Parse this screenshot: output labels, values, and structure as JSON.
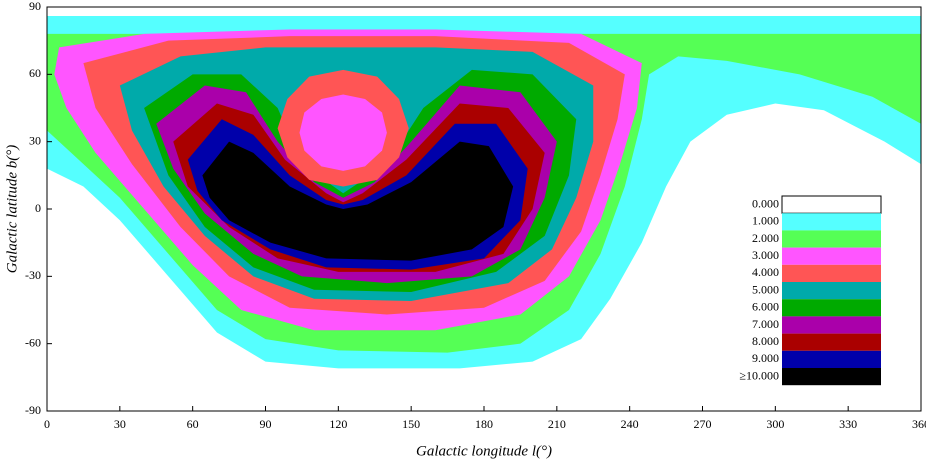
{
  "chart_data": {
    "type": "contour",
    "x_label": "Galactic longitude l(°)",
    "y_label": "Galactic latitude b(°)",
    "xlim": [
      0,
      360
    ],
    "ylim": [
      -90,
      90
    ],
    "xticks": [
      0,
      30,
      60,
      90,
      120,
      150,
      180,
      210,
      240,
      270,
      300,
      330,
      360
    ],
    "yticks": [
      -90,
      -60,
      -30,
      0,
      30,
      60,
      90
    ],
    "legend": [
      {
        "value": 0,
        "label": "0.000",
        "color": "#ffffff"
      },
      {
        "value": 1,
        "label": "1.000",
        "color": "#55ffff"
      },
      {
        "value": 2,
        "label": "2.000",
        "color": "#55ff55"
      },
      {
        "value": 3,
        "label": "3.000",
        "color": "#ff55ff"
      },
      {
        "value": 4,
        "label": "4.000",
        "color": "#ff5555"
      },
      {
        "value": 5,
        "label": "5.000",
        "color": "#00aaaa"
      },
      {
        "value": 6,
        "label": "6.000",
        "color": "#00aa00"
      },
      {
        "value": 7,
        "label": "7.000",
        "color": "#aa00aa"
      },
      {
        "value": 8,
        "label": "8.000",
        "color": "#aa0000"
      },
      {
        "value": 9,
        "label": "9.000",
        "color": "#0000aa"
      },
      {
        "value": 10,
        "label": "≥10.000",
        "color": "#000000"
      }
    ],
    "regions": [
      {
        "level": 1,
        "l": [
          0,
          360,
          360,
          345,
          320,
          300,
          280,
          265,
          255,
          245,
          232,
          220,
          200,
          170,
          120,
          90,
          70,
          50,
          30,
          15,
          0
        ],
        "b": [
          86,
          86,
          20,
          30,
          44,
          47,
          42,
          30,
          10,
          -15,
          -40,
          -58,
          -68,
          -71,
          -71,
          -68,
          -55,
          -30,
          -5,
          10,
          18
        ]
      },
      {
        "level": 2,
        "l": [
          0,
          360,
          360,
          340,
          310,
          280,
          260,
          248,
          245,
          238,
          228,
          215,
          195,
          165,
          120,
          90,
          70,
          50,
          30,
          10,
          0
        ],
        "b": [
          78,
          78,
          38,
          50,
          60,
          66,
          68,
          60,
          40,
          10,
          -20,
          -45,
          -60,
          -64,
          -63,
          -58,
          -45,
          -20,
          5,
          25,
          35
        ]
      },
      {
        "level": 3,
        "l": [
          5,
          40,
          100,
          160,
          220,
          245,
          243,
          236,
          228,
          215,
          195,
          160,
          110,
          80,
          60,
          40,
          20,
          8,
          3
        ],
        "b": [
          72,
          78,
          80,
          80,
          78,
          65,
          45,
          20,
          -5,
          -30,
          -47,
          -54,
          -54,
          -45,
          -25,
          0,
          25,
          45,
          60
        ]
      },
      {
        "level": 4,
        "l": [
          15,
          50,
          100,
          160,
          215,
          238,
          235,
          228,
          220,
          205,
          180,
          140,
          100,
          75,
          55,
          35,
          20
        ],
        "b": [
          65,
          75,
          77,
          77,
          74,
          60,
          40,
          15,
          -10,
          -32,
          -44,
          -47,
          -44,
          -30,
          -8,
          20,
          45
        ]
      },
      {
        "level": 5,
        "l": [
          30,
          55,
          90,
          160,
          200,
          225,
          225,
          218,
          208,
          190,
          150,
          110,
          85,
          65,
          48,
          35
        ],
        "b": [
          55,
          68,
          72,
          72,
          70,
          55,
          30,
          5,
          -18,
          -33,
          -41,
          -40,
          -30,
          -12,
          10,
          35
        ]
      },
      {
        "level": 6,
        "l": [
          40,
          60,
          80,
          95,
          105,
          122,
          140,
          155,
          175,
          200,
          218,
          215,
          205,
          185,
          150,
          110,
          85,
          65,
          50
        ],
        "b": [
          45,
          60,
          60,
          45,
          20,
          7,
          20,
          45,
          62,
          60,
          40,
          15,
          -12,
          -28,
          -37,
          -36,
          -26,
          -8,
          15
        ]
      },
      {
        "level": 7,
        "l": [
          45,
          65,
          82,
          95,
          110,
          122,
          135,
          150,
          170,
          195,
          210,
          205,
          195,
          175,
          140,
          105,
          85,
          65,
          52
        ],
        "b": [
          38,
          55,
          52,
          30,
          12,
          5,
          12,
          30,
          55,
          52,
          30,
          5,
          -18,
          -30,
          -33,
          -30,
          -20,
          -2,
          18
        ]
      },
      {
        "level": 8,
        "l": [
          52,
          70,
          85,
          98,
          115,
          122,
          130,
          148,
          170,
          190,
          205,
          200,
          188,
          160,
          120,
          95,
          75,
          58
        ],
        "b": [
          30,
          47,
          42,
          22,
          7,
          3,
          7,
          22,
          47,
          45,
          25,
          0,
          -20,
          -28,
          -28,
          -22,
          -8,
          10
        ]
      },
      {
        "level": 9,
        "l": [
          58,
          72,
          85,
          100,
          115,
          122,
          130,
          148,
          168,
          185,
          198,
          195,
          180,
          150,
          115,
          92,
          72,
          62
        ],
        "b": [
          22,
          40,
          33,
          15,
          4,
          2,
          4,
          15,
          38,
          38,
          18,
          -5,
          -22,
          -27,
          -26,
          -18,
          -5,
          8
        ]
      },
      {
        "level": 10,
        "l": [
          64,
          75,
          85,
          100,
          115,
          122,
          132,
          150,
          170,
          182,
          192,
          188,
          175,
          150,
          115,
          92,
          75,
          67
        ],
        "b": [
          15,
          30,
          25,
          10,
          2,
          0,
          2,
          12,
          30,
          28,
          10,
          -8,
          -18,
          -23,
          -22,
          -15,
          -5,
          5
        ]
      },
      {
        "level": 4,
        "l": [
          149,
          145,
          136,
          122,
          108,
          99,
          95,
          99,
          108,
          122,
          136,
          145
        ],
        "b": [
          36,
          49,
          59,
          62,
          59,
          49,
          36,
          23,
          13,
          10,
          13,
          23
        ]
      },
      {
        "level": 3,
        "l": [
          140,
          138,
          131,
          122,
          113,
          106,
          104,
          106,
          113,
          122,
          131,
          138
        ],
        "b": [
          34,
          43,
          49,
          51,
          49,
          43,
          34,
          26,
          19,
          17,
          19,
          26
        ]
      }
    ]
  }
}
